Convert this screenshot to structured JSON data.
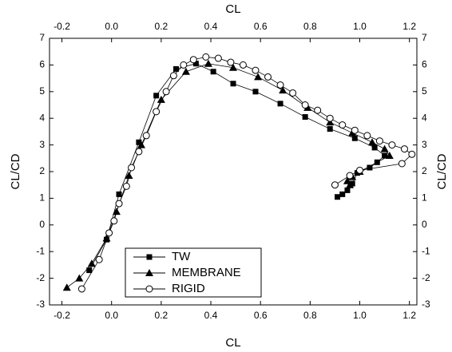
{
  "chart_data": {
    "type": "scatter",
    "xlabel": "CL",
    "ylabel": "CL/CD",
    "xlim": [
      -0.25,
      1.23
    ],
    "ylim": [
      -3,
      7
    ],
    "xticks": [
      -0.2,
      {
        "value": 0,
        "label": "0.0"
      },
      0.2,
      0.4,
      0.6,
      0.8,
      {
        "value": 1,
        "label": "1.0"
      },
      1.2
    ],
    "yticks": [
      -3,
      -2,
      -1,
      0,
      1,
      2,
      3,
      4,
      5,
      6,
      7
    ],
    "legend": "lower left",
    "series": [
      {
        "name": "TW",
        "color": "#000000",
        "marker": "square",
        "x": [
          -0.09,
          -0.02,
          0.03,
          0.11,
          0.18,
          0.26,
          0.34,
          0.41,
          0.49,
          0.58,
          0.68,
          0.78,
          0.88,
          0.98,
          1.06,
          1.1,
          1.07,
          1.04,
          0.99,
          0.97,
          0.95,
          0.93,
          0.91
        ],
        "values": [
          -1.7,
          -0.55,
          1.15,
          3.1,
          4.85,
          5.85,
          6.05,
          5.75,
          5.3,
          5.0,
          4.55,
          4.05,
          3.6,
          3.25,
          2.9,
          2.6,
          2.35,
          2.15,
          1.95,
          1.55,
          1.3,
          1.15,
          1.05
        ]
      },
      {
        "name": "MEMBRANE",
        "color": "#000000",
        "marker": "triangle",
        "x": [
          -0.18,
          -0.13,
          -0.08,
          -0.02,
          0.02,
          0.07,
          0.12,
          0.2,
          0.3,
          0.39,
          0.49,
          0.59,
          0.69,
          0.79,
          0.88,
          0.97,
          1.05,
          1.1,
          1.12,
          1.0,
          0.97,
          0.95,
          0.96
        ],
        "values": [
          -2.35,
          -2.0,
          -1.45,
          -0.5,
          0.5,
          1.85,
          3.0,
          4.7,
          5.75,
          6.05,
          5.9,
          5.55,
          5.05,
          4.4,
          3.85,
          3.45,
          3.1,
          2.85,
          2.6,
          2.0,
          1.8,
          1.65,
          1.5
        ]
      },
      {
        "name": "RIGID",
        "color": "#000000",
        "marker": "circle",
        "x": [
          -0.12,
          -0.05,
          -0.01,
          0.01,
          0.03,
          0.06,
          0.08,
          0.11,
          0.14,
          0.18,
          0.22,
          0.25,
          0.29,
          0.33,
          0.38,
          0.43,
          0.48,
          0.53,
          0.58,
          0.63,
          0.68,
          0.73,
          0.78,
          0.83,
          0.88,
          0.93,
          0.98,
          1.03,
          1.08,
          1.13,
          1.18,
          1.21,
          1.17,
          1.0,
          0.96,
          0.9
        ],
        "values": [
          -2.4,
          -1.3,
          -0.3,
          0.15,
          0.8,
          1.45,
          2.15,
          2.75,
          3.35,
          4.25,
          5.0,
          5.6,
          6.0,
          6.2,
          6.3,
          6.25,
          6.1,
          6.0,
          5.8,
          5.55,
          5.25,
          4.95,
          4.5,
          4.3,
          4.0,
          3.75,
          3.55,
          3.35,
          3.15,
          3.0,
          2.85,
          2.65,
          2.3,
          2.05,
          1.85,
          1.5
        ]
      }
    ]
  }
}
